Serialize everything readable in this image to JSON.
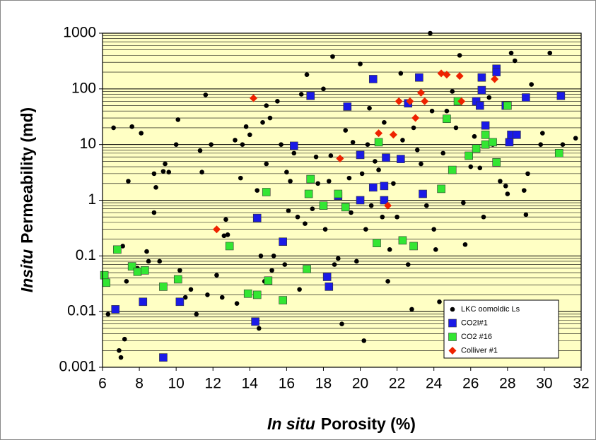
{
  "chart_data": {
    "type": "scatter",
    "xlabel_italic": "In situ",
    "xlabel": "Porosity (%)",
    "ylabel_italic": "Insitu",
    "ylabel": "Permeability (md)",
    "xlim": [
      6,
      32
    ],
    "xticks": [
      6,
      8,
      10,
      12,
      14,
      16,
      18,
      20,
      22,
      24,
      26,
      28,
      30,
      32
    ],
    "ylim": [
      0.001,
      1000
    ],
    "yticks": [
      0.001,
      0.01,
      0.1,
      1,
      10,
      100,
      1000
    ],
    "ylog": true,
    "grid": true,
    "yminorgrid": [
      0.002,
      0.003,
      0.004,
      0.005,
      0.006,
      0.007,
      0.008,
      0.009,
      0.02,
      0.03,
      0.04,
      0.05,
      0.06,
      0.07,
      0.08,
      0.09,
      0.2,
      0.3,
      0.4,
      0.5,
      0.6,
      0.7,
      0.8,
      0.9,
      2,
      3,
      4,
      5,
      6,
      7,
      8,
      9,
      20,
      30,
      40,
      50,
      60,
      70,
      80,
      90,
      200,
      300,
      400,
      500,
      600,
      700,
      800,
      900
    ],
    "legend": "lower right",
    "series": [
      {
        "name": "LKC oomoldic Ls",
        "color": "#000000",
        "marker": "circle",
        "x": [
          6.3,
          6.6,
          6.9,
          7.0,
          7.1,
          7.2,
          7.3,
          7.4,
          7.6,
          7.9,
          8.1,
          8.4,
          8.5,
          8.8,
          8.8,
          8.9,
          9.1,
          9.3,
          9.4,
          9.6,
          10.0,
          10.1,
          10.2,
          10.5,
          10.8,
          11.1,
          11.3,
          11.4,
          11.6,
          11.7,
          11.9,
          12.2,
          12.5,
          12.6,
          12.7,
          12.8,
          13.2,
          13.3,
          13.5,
          13.6,
          13.8,
          14.0,
          14.4,
          14.5,
          14.6,
          14.7,
          14.8,
          14.9,
          14.9,
          15.1,
          15.2,
          15.3,
          15.5,
          15.7,
          15.9,
          16.0,
          16.1,
          16.2,
          16.4,
          16.6,
          16.7,
          16.8,
          17.0,
          17.1,
          17.4,
          17.6,
          17.7,
          18.0,
          18.1,
          18.3,
          18.4,
          18.5,
          18.6,
          18.8,
          19.0,
          19.2,
          19.4,
          19.5,
          19.6,
          19.8,
          20.0,
          20.1,
          20.2,
          20.3,
          20.4,
          20.5,
          20.6,
          20.8,
          21.0,
          21.2,
          21.3,
          21.5,
          21.6,
          21.8,
          22.0,
          22.2,
          22.3,
          22.6,
          22.8,
          22.9,
          23.1,
          23.3,
          23.6,
          23.8,
          23.9,
          24.0,
          24.1,
          24.3,
          24.5,
          24.7,
          25.0,
          25.2,
          25.4,
          25.6,
          25.7,
          26.0,
          26.2,
          26.5,
          26.7,
          27.0,
          27.2,
          27.6,
          27.9,
          28.0,
          28.2,
          28.4,
          28.9,
          29.0,
          29.1,
          29.3,
          29.8,
          29.9,
          30.3,
          30.9,
          31.0,
          31.7
        ],
        "values": [
          0.009,
          20,
          0.002,
          0.0015,
          0.15,
          0.0032,
          0.035,
          2.2,
          21,
          0.06,
          16,
          0.12,
          0.08,
          3,
          0.6,
          1.7,
          0.08,
          3.3,
          4.5,
          3.2,
          10,
          28,
          0.055,
          0.018,
          0.025,
          0.009,
          7.8,
          3.2,
          78,
          0.02,
          10,
          0.045,
          0.018,
          0.23,
          0.45,
          0.24,
          12,
          0.014,
          2.5,
          10,
          21,
          15,
          1.5,
          0.005,
          0.1,
          25,
          0.035,
          4.5,
          50,
          30,
          0.055,
          0.1,
          60,
          10,
          0.07,
          3.2,
          0.65,
          2.2,
          7,
          0.5,
          0.025,
          80,
          0.38,
          180,
          0.7,
          6,
          2,
          100,
          0.3,
          2.2,
          6.3,
          380,
          0.07,
          0.09,
          0.006,
          18,
          2.5,
          0.6,
          11,
          0.08,
          280,
          3,
          0.003,
          0.3,
          10,
          45,
          0.8,
          5,
          3.5,
          0.5,
          25,
          0.035,
          0.13,
          2,
          0.5,
          190,
          12,
          0.07,
          0.011,
          20,
          8,
          4.5,
          0.8,
          1000,
          40,
          0.3,
          0.13,
          0.015,
          7,
          40,
          90,
          20,
          400,
          0.9,
          0.16,
          4,
          14,
          3.8,
          0.5,
          70,
          10,
          2.2,
          1.8,
          1.3,
          440,
          320,
          1.5,
          0.55,
          3,
          120,
          10,
          16,
          440,
          7,
          10,
          13
        ]
      },
      {
        "name": "CO2I#1",
        "color": "#1a1ae6",
        "marker": "square",
        "x": [
          6.7,
          8.2,
          9.3,
          10.2,
          14.3,
          14.4,
          15.8,
          16.4,
          17.3,
          18.2,
          18.3,
          18.8,
          19.3,
          20.0,
          20.0,
          20.7,
          20.7,
          21.3,
          21.3,
          21.4,
          22.2,
          22.6,
          23.2,
          23.4,
          26.3,
          26.5,
          26.6,
          26.6,
          26.8,
          27.4,
          27.4,
          27.9,
          28.1,
          28.2,
          28.5,
          29.0,
          30.9
        ],
        "values": [
          0.011,
          0.015,
          0.0015,
          0.015,
          0.0066,
          0.48,
          0.18,
          9.5,
          75,
          0.042,
          0.028,
          1.2,
          48,
          1,
          6.5,
          150,
          1.7,
          1.8,
          1,
          5.8,
          5.5,
          55,
          160,
          1.3,
          60,
          50,
          95,
          160,
          22,
          230,
          200,
          50,
          11,
          15,
          15,
          70,
          75
        ]
      },
      {
        "name": "CO2 #16",
        "color": "#33e633",
        "marker": "square",
        "x": [
          6.1,
          6.2,
          6.8,
          7.6,
          7.9,
          8.3,
          9.3,
          10.1,
          12.9,
          13.9,
          14.4,
          14.9,
          15.0,
          15.8,
          17.1,
          17.2,
          17.3,
          18.0,
          18.8,
          19.2,
          20.9,
          21.0,
          22.3,
          22.9,
          24.4,
          24.7,
          25.0,
          25.3,
          25.9,
          26.3,
          26.8,
          26.8,
          27.2,
          27.4,
          28.0,
          30.8
        ],
        "values": [
          0.045,
          0.033,
          0.13,
          0.065,
          0.052,
          0.055,
          0.028,
          0.038,
          0.15,
          0.021,
          0.02,
          1.4,
          0.036,
          0.016,
          0.058,
          1.3,
          2.4,
          0.8,
          1.3,
          0.75,
          0.17,
          11,
          0.19,
          0.15,
          1.6,
          29,
          3.5,
          60,
          6.3,
          8.5,
          15,
          10,
          11,
          4.8,
          50,
          7
        ]
      },
      {
        "name": "Colliver #1",
        "color": "#ee2200",
        "marker": "diamond",
        "x": [
          12.2,
          14.2,
          18.9,
          21.0,
          21.5,
          21.8,
          22.1,
          22.7,
          23.0,
          23.3,
          23.5,
          24.4,
          24.7,
          25.4,
          25.5,
          27.3
        ],
        "values": [
          0.3,
          68,
          5.6,
          16,
          0.8,
          15,
          60,
          60,
          30,
          85,
          60,
          190,
          180,
          170,
          60,
          150
        ]
      }
    ]
  }
}
